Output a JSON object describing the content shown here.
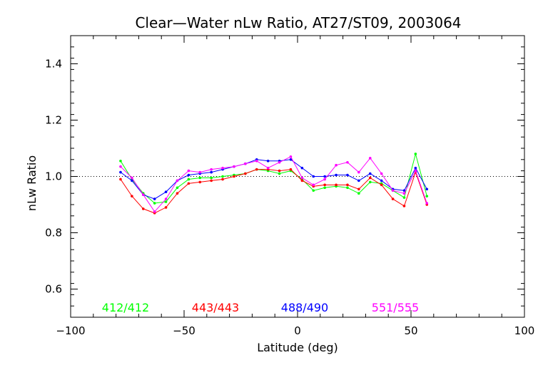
{
  "chart_data": {
    "type": "line",
    "title": "Clear—Water nLw Ratio, AT27/ST09, 2003064",
    "xlabel": "Latitude (deg)",
    "ylabel": "nLw Ratio",
    "xlim": [
      -100,
      100
    ],
    "ylim": [
      0.5,
      1.5
    ],
    "xticks": [
      -100,
      -50,
      0,
      50,
      100
    ],
    "yticks": [
      0.6,
      0.8,
      1.0,
      1.2,
      1.4
    ],
    "xtick_labels": [
      "−100",
      "−50",
      "0",
      "50",
      "100"
    ],
    "ytick_labels": [
      "0.6",
      "0.8",
      "1.0",
      "1.2",
      "1.4"
    ],
    "reference_line": 1.0,
    "grid": false,
    "legend_placement": "bottom, inside plot",
    "series": [
      {
        "name": "412/412",
        "color": "#00ff00",
        "points": [
          [
            -78,
            1.055
          ],
          [
            -73,
            0.99
          ],
          [
            -68,
            0.94
          ],
          [
            -63,
            0.905
          ],
          [
            -58,
            0.91
          ],
          [
            -53,
            0.96
          ],
          [
            -48,
            0.99
          ],
          [
            -43,
            0.995
          ],
          [
            -38,
            0.995
          ],
          [
            -33,
            1.0
          ],
          [
            -28,
            1.005
          ],
          [
            -23,
            1.01
          ],
          [
            -18,
            1.025
          ],
          [
            -13,
            1.02
          ],
          [
            -8,
            1.01
          ],
          [
            -3,
            1.02
          ],
          [
            2,
            0.99
          ],
          [
            7,
            0.95
          ],
          [
            12,
            0.96
          ],
          [
            17,
            0.965
          ],
          [
            22,
            0.96
          ],
          [
            27,
            0.94
          ],
          [
            32,
            0.98
          ],
          [
            37,
            0.975
          ],
          [
            42,
            0.95
          ],
          [
            47,
            0.925
          ],
          [
            52,
            1.08
          ],
          [
            57,
            0.93
          ]
        ]
      },
      {
        "name": "443/443",
        "color": "#ff0000",
        "points": [
          [
            -78,
            0.99
          ],
          [
            -73,
            0.93
          ],
          [
            -68,
            0.885
          ],
          [
            -63,
            0.87
          ],
          [
            -58,
            0.89
          ],
          [
            -53,
            0.94
          ],
          [
            -48,
            0.975
          ],
          [
            -43,
            0.98
          ],
          [
            -38,
            0.985
          ],
          [
            -33,
            0.99
          ],
          [
            -28,
            1.0
          ],
          [
            -23,
            1.01
          ],
          [
            -18,
            1.025
          ],
          [
            -13,
            1.025
          ],
          [
            -8,
            1.02
          ],
          [
            -3,
            1.025
          ],
          [
            2,
            0.985
          ],
          [
            7,
            0.965
          ],
          [
            12,
            0.97
          ],
          [
            17,
            0.97
          ],
          [
            22,
            0.97
          ],
          [
            27,
            0.955
          ],
          [
            32,
            0.995
          ],
          [
            37,
            0.97
          ],
          [
            42,
            0.92
          ],
          [
            47,
            0.895
          ],
          [
            52,
            1.015
          ],
          [
            57,
            0.9
          ]
        ]
      },
      {
        "name": "488/490",
        "color": "#0000ff",
        "points": [
          [
            -78,
            1.015
          ],
          [
            -73,
            0.985
          ],
          [
            -68,
            0.935
          ],
          [
            -63,
            0.92
          ],
          [
            -58,
            0.945
          ],
          [
            -53,
            0.985
          ],
          [
            -48,
            1.005
          ],
          [
            -43,
            1.01
          ],
          [
            -38,
            1.015
          ],
          [
            -33,
            1.025
          ],
          [
            -28,
            1.035
          ],
          [
            -23,
            1.045
          ],
          [
            -18,
            1.06
          ],
          [
            -13,
            1.055
          ],
          [
            -8,
            1.055
          ],
          [
            -3,
            1.06
          ],
          [
            2,
            1.03
          ],
          [
            7,
            1.0
          ],
          [
            12,
            1.0
          ],
          [
            17,
            1.005
          ],
          [
            22,
            1.005
          ],
          [
            27,
            0.985
          ],
          [
            32,
            1.01
          ],
          [
            37,
            0.985
          ],
          [
            42,
            0.955
          ],
          [
            47,
            0.95
          ],
          [
            52,
            1.03
          ],
          [
            57,
            0.955
          ]
        ]
      },
      {
        "name": "551/555",
        "color": "#ff00ff",
        "points": [
          [
            -78,
            1.035
          ],
          [
            -73,
            0.995
          ],
          [
            -68,
            0.935
          ],
          [
            -63,
            0.875
          ],
          [
            -58,
            0.92
          ],
          [
            -53,
            0.985
          ],
          [
            -48,
            1.02
          ],
          [
            -43,
            1.015
          ],
          [
            -38,
            1.025
          ],
          [
            -33,
            1.03
          ],
          [
            -28,
            1.035
          ],
          [
            -23,
            1.045
          ],
          [
            -18,
            1.055
          ],
          [
            -13,
            1.03
          ],
          [
            -8,
            1.05
          ],
          [
            -3,
            1.07
          ],
          [
            2,
            0.995
          ],
          [
            7,
            0.97
          ],
          [
            12,
            0.99
          ],
          [
            17,
            1.04
          ],
          [
            22,
            1.05
          ],
          [
            27,
            1.015
          ],
          [
            32,
            1.065
          ],
          [
            37,
            1.01
          ],
          [
            42,
            0.95
          ],
          [
            47,
            0.94
          ],
          [
            52,
            1.02
          ],
          [
            57,
            0.905
          ]
        ]
      }
    ]
  }
}
